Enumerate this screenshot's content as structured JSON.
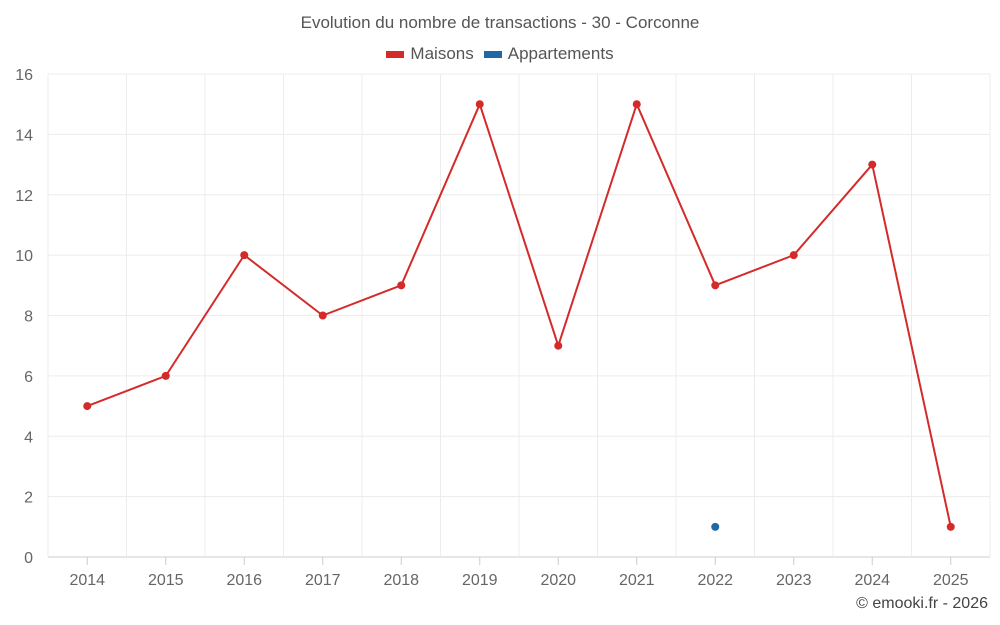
{
  "chart_data": {
    "type": "line",
    "title": "Evolution du nombre de transactions - 30 - Corconne",
    "xlabel": "",
    "ylabel": "",
    "categories": [
      "2014",
      "2015",
      "2016",
      "2017",
      "2018",
      "2019",
      "2020",
      "2021",
      "2022",
      "2023",
      "2024",
      "2025"
    ],
    "ylim": [
      0,
      16
    ],
    "yticks": [
      "0",
      "2",
      "4",
      "6",
      "8",
      "10",
      "12",
      "14",
      "16"
    ],
    "grid": true,
    "legend_position": "top-center",
    "series": [
      {
        "name": "Maisons",
        "color": "#d42a2a",
        "values": [
          5,
          6,
          10,
          8,
          9,
          15,
          7,
          15,
          9,
          10,
          13,
          1
        ]
      },
      {
        "name": "Appartements",
        "color": "#1f68a4",
        "values": [
          null,
          null,
          null,
          null,
          null,
          null,
          null,
          null,
          1,
          null,
          null,
          null
        ]
      }
    ]
  },
  "credit": "© emooki.fr - 2026"
}
